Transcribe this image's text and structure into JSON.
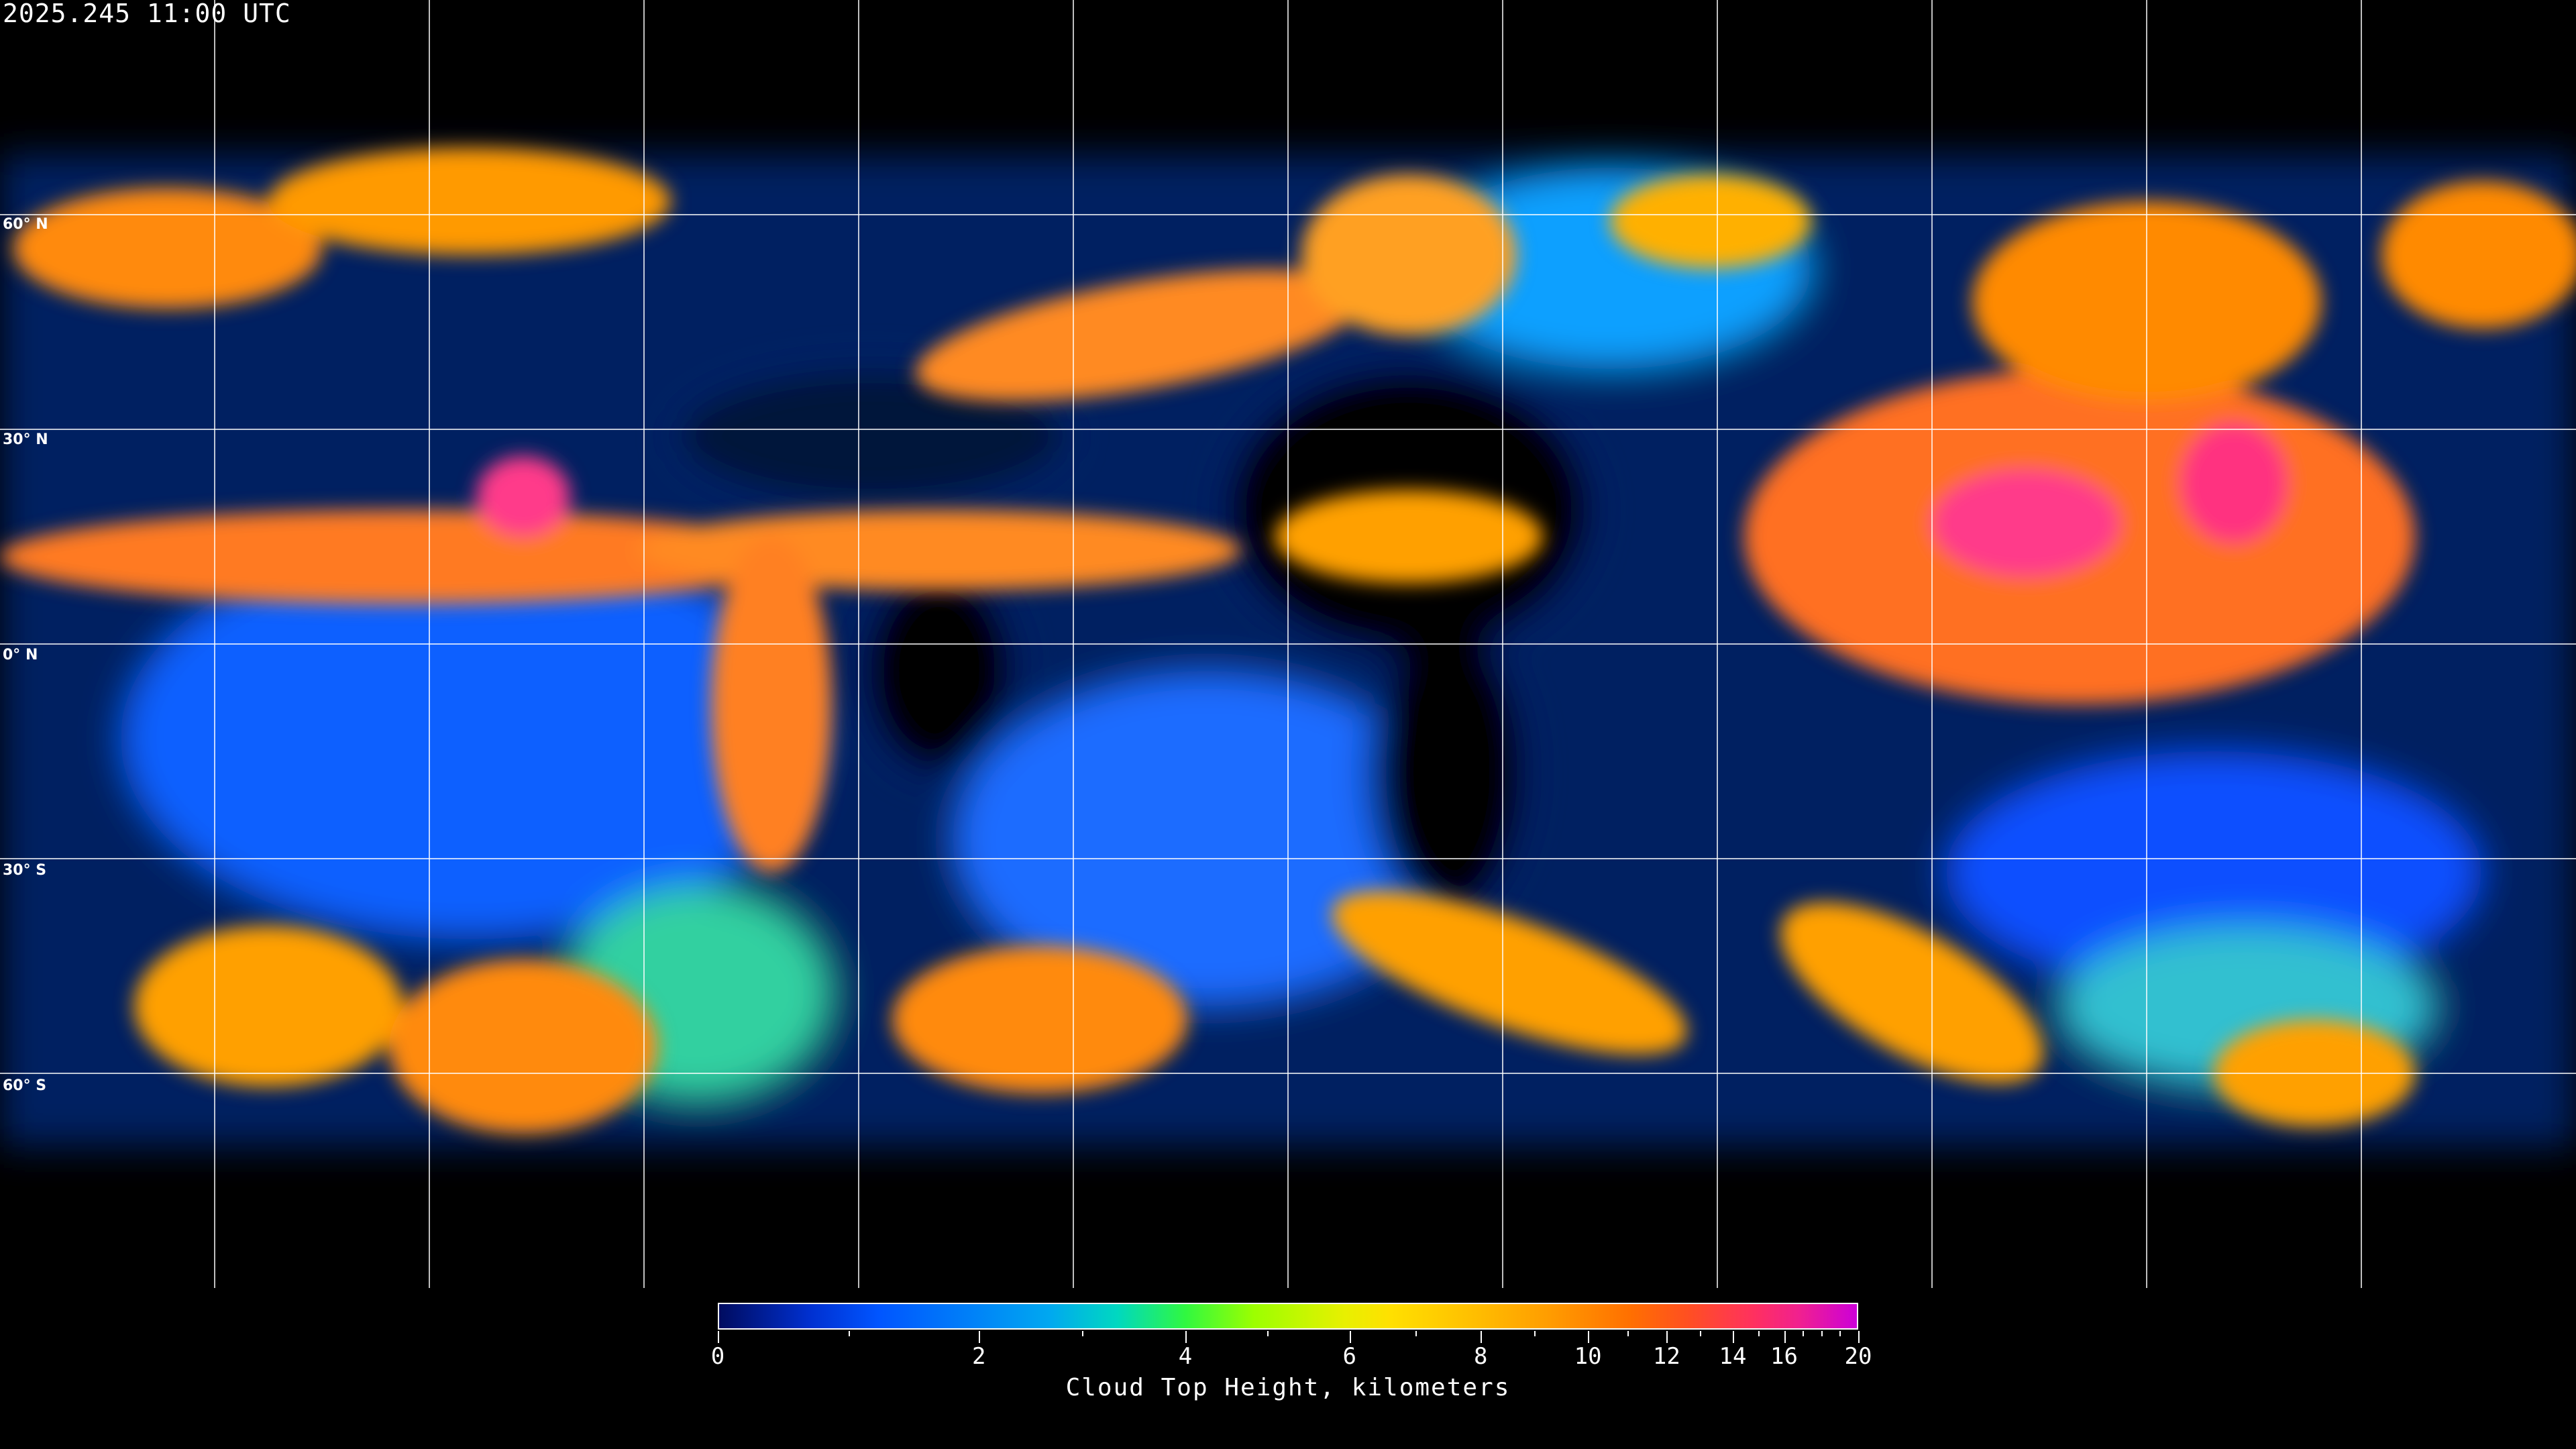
{
  "timestamp": "2025.245 11:00 UTC",
  "map": {
    "projection": "equirectangular",
    "gridline_color": "#ffffff",
    "coastline_color": "#ffffff",
    "latitude_labels": [
      "60° N",
      "30° N",
      "0° N",
      "30° S",
      "60° S"
    ],
    "latitudes": [
      60,
      30,
      0,
      -30,
      -60
    ],
    "longitude_gridlines": [
      -150,
      -120,
      -90,
      -60,
      -30,
      0,
      30,
      60,
      90,
      120,
      150
    ]
  },
  "colorbar": {
    "title": "Cloud Top Height, kilometers",
    "min": 0,
    "max": 20,
    "major_ticks": [
      {
        "value": 0,
        "label": "0"
      },
      {
        "value": 2,
        "label": "2"
      },
      {
        "value": 4,
        "label": "4"
      },
      {
        "value": 6,
        "label": "6"
      },
      {
        "value": 8,
        "label": "8"
      },
      {
        "value": 10,
        "label": "10"
      },
      {
        "value": 12,
        "label": "12"
      },
      {
        "value": 14,
        "label": "14"
      },
      {
        "value": 16,
        "label": "16"
      },
      {
        "value": 20,
        "label": "20"
      }
    ],
    "minor_ticks": [
      1,
      3,
      5,
      7,
      9,
      11,
      13,
      15,
      17,
      18,
      19
    ],
    "colors": [
      "#000c60",
      "#0055ff",
      "#00a8f0",
      "#30f840",
      "#e8f000",
      "#ffc000",
      "#ff7000",
      "#ff3060",
      "#cc00d8"
    ]
  }
}
